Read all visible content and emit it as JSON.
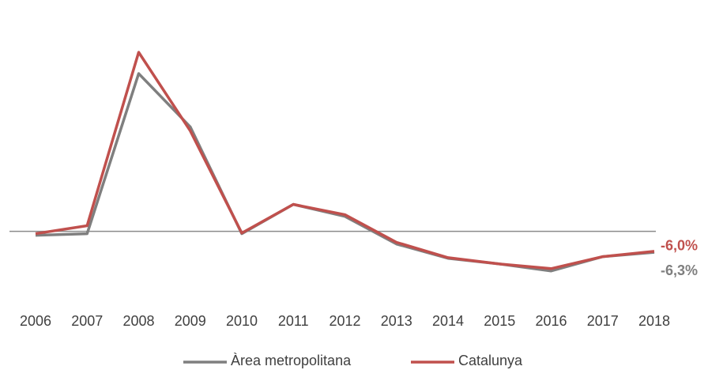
{
  "chart_data": {
    "type": "line",
    "categories": [
      "2006",
      "2007",
      "2008",
      "2009",
      "2010",
      "2011",
      "2012",
      "2013",
      "2014",
      "2015",
      "2016",
      "2017",
      "2018"
    ],
    "ylim": [
      -16,
      60
    ],
    "series": [
      {
        "name": "Àrea metropolitana",
        "color": "#7f7f7f",
        "values": [
          -1.2,
          -0.7,
          47.4,
          31.4,
          -0.7,
          8.1,
          4.5,
          -3.8,
          -8.1,
          -9.8,
          -11.9,
          -7.6,
          -6.3
        ],
        "value_labels": [
          null,
          null,
          null,
          null,
          null,
          null,
          null,
          null,
          null,
          null,
          null,
          null,
          "-6,3%"
        ]
      },
      {
        "name": "Catalunya",
        "color": "#c0504d",
        "values": [
          -0.7,
          1.7,
          53.8,
          30.2,
          -0.5,
          8.1,
          5.0,
          -3.3,
          -7.9,
          -9.8,
          -11.2,
          -7.6,
          -6.0
        ],
        "value_labels": [
          null,
          null,
          null,
          null,
          null,
          null,
          null,
          null,
          null,
          null,
          null,
          null,
          "-6,0%"
        ]
      }
    ]
  }
}
